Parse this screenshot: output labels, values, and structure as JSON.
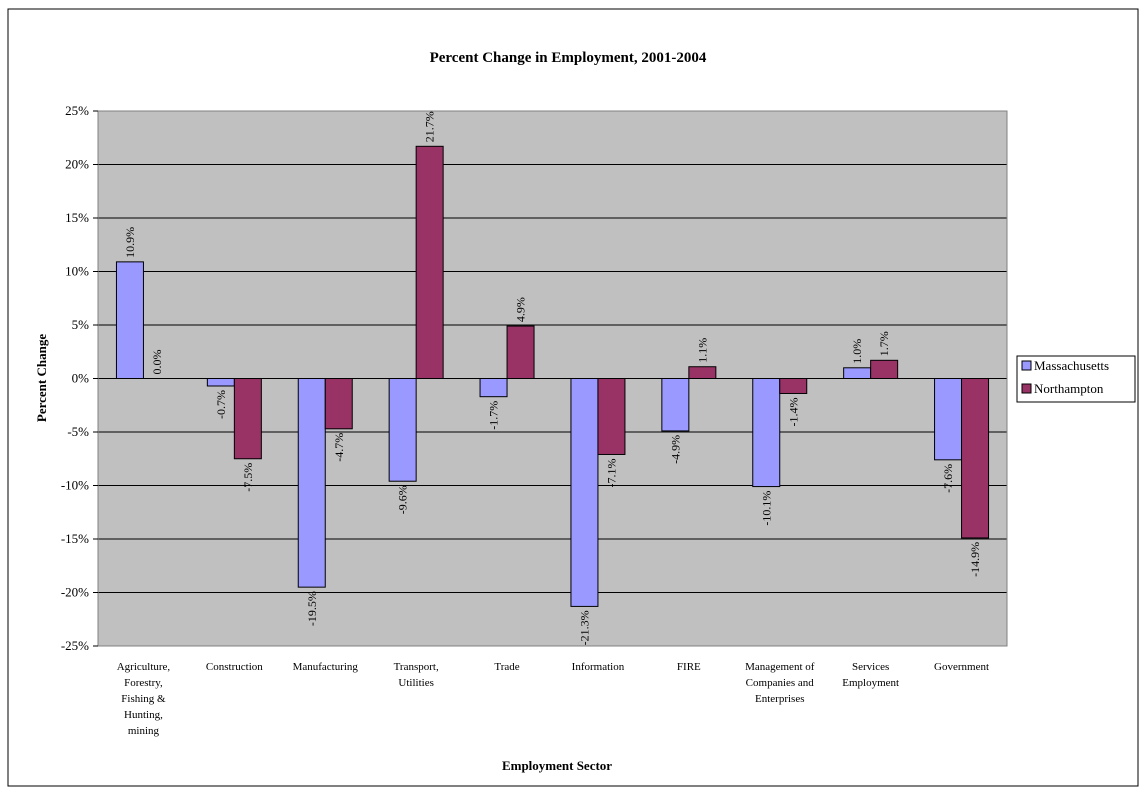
{
  "colors": {
    "plot_bg": "#c0c0c0",
    "gridline": "#000000",
    "massachusetts": "#9999ff",
    "northampton": "#993366",
    "border": "#000000"
  },
  "chart_data": {
    "type": "bar",
    "title": "Percent Change in Employment, 2001-2004",
    "xlabel": "Employment Sector",
    "ylabel": "Percent Change",
    "ylim": [
      -25,
      25
    ],
    "yticks": [
      25,
      20,
      15,
      10,
      5,
      0,
      -5,
      -10,
      -15,
      -20,
      -25
    ],
    "ytick_labels": [
      "25%",
      "20%",
      "15%",
      "10%",
      "5%",
      "0%",
      "-5%",
      "-10%",
      "-15%",
      "-20%",
      "-25%"
    ],
    "grid": true,
    "legend_position": "right",
    "categories": [
      [
        "Agriculture,",
        "Forestry,",
        "Fishing &",
        "Hunting,",
        "mining"
      ],
      [
        "Construction"
      ],
      [
        "Manufacturing"
      ],
      [
        "Transport,",
        "Utilities"
      ],
      [
        "Trade"
      ],
      [
        "Information"
      ],
      [
        "FIRE"
      ],
      [
        "Management of",
        "Companies and",
        "Enterprises"
      ],
      [
        "Services",
        "Employment"
      ],
      [
        "Government"
      ]
    ],
    "series": [
      {
        "name": "Massachusetts",
        "values": [
          10.9,
          -0.7,
          -19.5,
          -9.6,
          -1.7,
          -21.3,
          -4.9,
          -10.1,
          1.0,
          -7.6
        ],
        "labels": [
          "10.9%",
          "-0.7%",
          "-19.5%",
          "-9.6%",
          "-1.7%",
          "-21.3%",
          "-4.9%",
          "-10.1%",
          "1.0%",
          "-7.6%"
        ]
      },
      {
        "name": "Northampton",
        "values": [
          0.0,
          -7.5,
          -4.7,
          21.7,
          4.9,
          -7.1,
          1.1,
          -1.4,
          1.7,
          -14.9
        ],
        "labels": [
          "0.0%",
          "-7.5%",
          "-4.7%",
          "21.7%",
          "4.9%",
          "-7.1%",
          "1.1%",
          "-1.4%",
          "1.7%",
          "-14.9%"
        ]
      }
    ]
  }
}
